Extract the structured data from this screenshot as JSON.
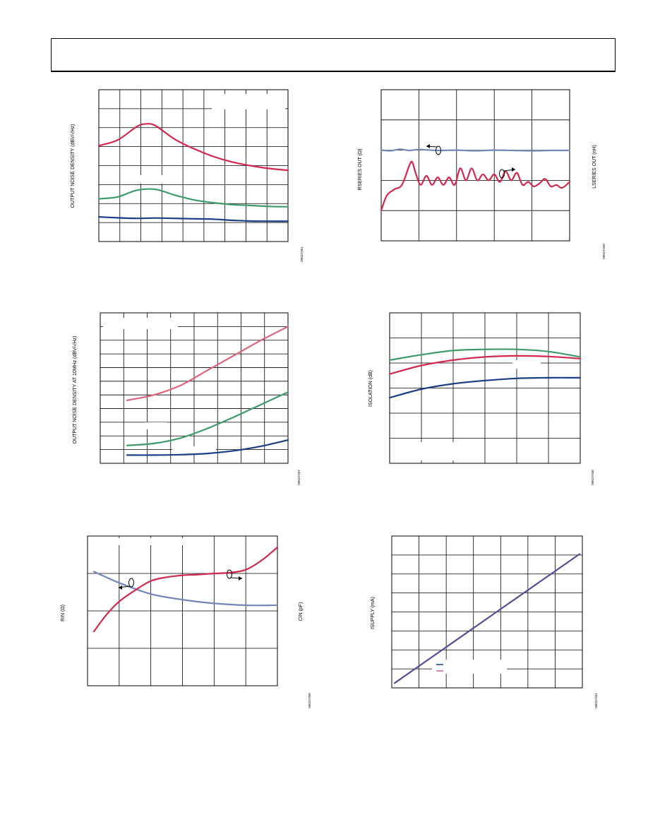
{
  "colors": {
    "red": "#d2284e",
    "pink": "#e0637b",
    "green": "#3e9a6a",
    "navy": "#1a3f84",
    "steel": "#7486b8",
    "purple": "#5b4a9a",
    "grid": "#000000"
  },
  "chart_data": [
    {
      "id": "chart1",
      "type": "line",
      "ylabel": "OUTPUT NOISE DENSITY (dBV/√Hz)",
      "figure_code": "09623-051",
      "xlim": [
        0,
        10
      ],
      "ylim": [
        0,
        8
      ],
      "grid": true,
      "series": [
        {
          "color": "#d2284e",
          "x": [
            0,
            1,
            2,
            2.5,
            3,
            4,
            5,
            6,
            7,
            8,
            9,
            10
          ],
          "y": [
            5.05,
            5.35,
            6.05,
            6.2,
            6.1,
            5.4,
            4.9,
            4.5,
            4.2,
            4.0,
            3.85,
            3.75
          ]
        },
        {
          "color": "#3e9a6a",
          "x": [
            0,
            1,
            2,
            3,
            4,
            5,
            6,
            7,
            8,
            9,
            10
          ],
          "y": [
            2.25,
            2.35,
            2.7,
            2.75,
            2.45,
            2.2,
            2.05,
            1.95,
            1.9,
            1.85,
            1.83
          ]
        },
        {
          "color": "#1a3f84",
          "x": [
            0,
            1,
            2,
            3,
            4,
            5,
            6,
            7,
            8,
            9,
            10
          ],
          "y": [
            1.3,
            1.25,
            1.22,
            1.24,
            1.22,
            1.2,
            1.18,
            1.12,
            1.08,
            1.07,
            1.07
          ]
        }
      ]
    },
    {
      "id": "chart2",
      "type": "line",
      "ylabel": "RSERIES OUT (Ω)",
      "y2label": "LSERIES OUT (nH)",
      "figure_code": "09623-039",
      "xlim": [
        0,
        10
      ],
      "ylim": [
        0,
        5
      ],
      "grid": true,
      "series": [
        {
          "color": "#7486b8",
          "x": [
            0,
            0.5,
            1,
            1.5,
            2,
            3,
            4,
            5,
            6,
            7,
            8,
            9,
            10
          ],
          "y": [
            3.0,
            2.98,
            3.03,
            2.99,
            3.02,
            2.99,
            3.0,
            2.98,
            3.0,
            2.99,
            2.98,
            2.99,
            2.99
          ]
        },
        {
          "color": "#d2284e",
          "x": [
            0,
            0.3,
            0.7,
            1.1,
            1.5,
            1.65,
            1.85,
            2.1,
            2.4,
            2.7,
            3.0,
            3.3,
            3.6,
            3.9,
            4.2,
            4.5,
            4.8,
            5.1,
            5.4,
            5.7,
            6.0,
            6.3,
            6.6,
            6.9,
            7.2,
            7.5,
            7.8,
            8.1,
            8.4,
            8.7,
            9.0,
            9.3,
            9.6,
            10
          ],
          "y": [
            1.0,
            1.5,
            1.7,
            1.85,
            2.5,
            2.6,
            2.2,
            1.85,
            2.15,
            1.85,
            2.1,
            1.85,
            2.1,
            1.85,
            2.4,
            2.0,
            2.4,
            2.0,
            2.2,
            2.0,
            2.2,
            1.95,
            2.3,
            2.0,
            2.25,
            1.85,
            1.95,
            1.8,
            1.9,
            2.05,
            1.8,
            1.85,
            1.75,
            1.95
          ]
        }
      ]
    },
    {
      "id": "chart3",
      "type": "line",
      "ylabel": "OUTPUT NOISE DENSITY AT 10MHz (dBV/√Hz)",
      "figure_code": "09623-037",
      "xlim": [
        0,
        7
      ],
      "ylim": [
        0,
        11
      ],
      "grid": true,
      "series": [
        {
          "color": "#e0637b",
          "x": [
            1,
            2,
            3,
            4,
            5,
            6,
            7
          ],
          "y": [
            4.6,
            5.0,
            5.7,
            6.8,
            7.9,
            9.0,
            10.0
          ]
        },
        {
          "color": "#3e9a6a",
          "x": [
            1,
            2,
            3,
            4,
            5,
            6,
            7
          ],
          "y": [
            1.3,
            1.45,
            1.85,
            2.55,
            3.4,
            4.3,
            5.2
          ]
        },
        {
          "color": "#1a3f84",
          "x": [
            1,
            2,
            3,
            4,
            5,
            6,
            7
          ],
          "y": [
            0.6,
            0.6,
            0.63,
            0.72,
            0.92,
            1.25,
            1.7
          ]
        }
      ]
    },
    {
      "id": "chart4",
      "type": "line",
      "ylabel": "ISOLATION (dB)",
      "figure_code": "09623-040",
      "xlim": [
        0,
        6
      ],
      "ylim": [
        0,
        7
      ],
      "grid": true,
      "series": [
        {
          "color": "#3e9a6a",
          "x": [
            0,
            1,
            2,
            3,
            4,
            5,
            6
          ],
          "y": [
            4.8,
            5.05,
            5.25,
            5.3,
            5.3,
            5.2,
            4.95
          ]
        },
        {
          "color": "#d2284e",
          "x": [
            0,
            1,
            2,
            3,
            4,
            5,
            6
          ],
          "y": [
            4.15,
            4.55,
            4.8,
            4.95,
            5.0,
            4.97,
            4.87
          ]
        },
        {
          "color": "#1a3f84",
          "x": [
            0,
            1,
            2,
            3,
            4,
            5,
            6
          ],
          "y": [
            3.05,
            3.45,
            3.7,
            3.85,
            3.95,
            3.98,
            3.98
          ]
        }
      ]
    },
    {
      "id": "chart5",
      "type": "line",
      "ylabel": "RIN (Ω)",
      "y2label": "CIN (pF)",
      "figure_code": "09623-038",
      "xlim": [
        0,
        6
      ],
      "ylim": [
        0,
        4
      ],
      "grid": true,
      "series": [
        {
          "color": "#7486b8",
          "x": [
            0.2,
            1,
            2,
            3,
            4,
            5,
            6
          ],
          "y": [
            3.05,
            2.75,
            2.45,
            2.3,
            2.2,
            2.15,
            2.15
          ]
        },
        {
          "color": "#d2284e",
          "x": [
            0.2,
            0.6,
            1,
            1.5,
            2,
            2.5,
            3,
            3.5,
            4,
            4.5,
            5,
            5.5,
            6
          ],
          "y": [
            1.45,
            1.9,
            2.25,
            2.55,
            2.8,
            2.9,
            2.95,
            2.97,
            3.0,
            3.02,
            3.1,
            3.35,
            3.7
          ]
        }
      ]
    },
    {
      "id": "chart6",
      "type": "line",
      "ylabel": "ISUPPLY (mA)",
      "figure_code": "09623-041",
      "xlim": [
        0,
        7
      ],
      "ylim": [
        0,
        8
      ],
      "grid": true,
      "series": [
        {
          "color": "#5b4a9a",
          "x": [
            0.1,
            6.9
          ],
          "y": [
            0.25,
            7.05
          ]
        }
      ]
    }
  ]
}
